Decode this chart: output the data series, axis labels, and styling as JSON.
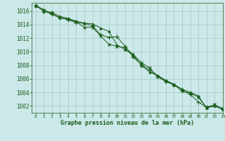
{
  "title": "Graphe pression niveau de la mer (hPa)",
  "background_color": "#cce8e8",
  "grid_color": "#aacccc",
  "line_color": "#1a5c1a",
  "xlim": [
    -0.5,
    23
  ],
  "ylim": [
    1001.0,
    1017.2
  ],
  "yticks": [
    1002,
    1004,
    1006,
    1008,
    1010,
    1012,
    1014,
    1016
  ],
  "xticks": [
    0,
    1,
    2,
    3,
    4,
    5,
    6,
    7,
    8,
    9,
    10,
    11,
    12,
    13,
    14,
    15,
    16,
    17,
    18,
    19,
    20,
    21,
    22,
    23
  ],
  "series": [
    [
      1016.8,
      1016.0,
      1015.8,
      1015.2,
      1014.9,
      1014.5,
      1014.2,
      1014.1,
      1013.5,
      1013.0,
      1011.0,
      1010.3,
      1009.5,
      1008.0,
      1007.0,
      1006.5,
      1005.8,
      1005.2,
      1004.5,
      1004.0,
      1003.5,
      1001.7,
      1002.0,
      1001.5
    ],
    [
      1016.8,
      1016.0,
      1015.5,
      1015.0,
      1014.7,
      1014.3,
      1014.2,
      1013.8,
      1012.5,
      1012.1,
      1012.2,
      1010.8,
      1009.2,
      1008.1,
      1007.3,
      1006.3,
      1005.6,
      1005.1,
      1004.3,
      1003.7,
      1002.6,
      1001.8,
      1002.1,
      1001.5
    ],
    [
      1016.8,
      1016.2,
      1015.6,
      1015.0,
      1014.8,
      1014.4,
      1013.6,
      1013.6,
      1012.3,
      1011.1,
      1010.8,
      1010.6,
      1009.6,
      1008.4,
      1007.6,
      1006.4,
      1005.7,
      1005.2,
      1004.2,
      1003.9,
      1003.3,
      1001.8,
      1002.2,
      1001.6
    ]
  ]
}
